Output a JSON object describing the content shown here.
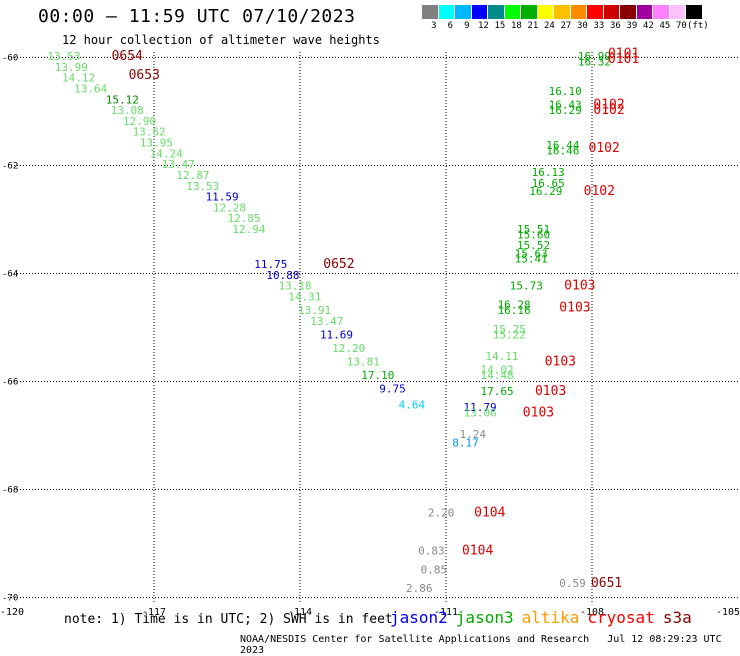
{
  "header": {
    "title": "00:00 – 11:59 UTC 07/10/2023",
    "subtitle": "12 hour collection of altimeter wave heights"
  },
  "colorbar": {
    "colors": [
      "#808080",
      "#00ffff",
      "#00b8ff",
      "#0000ff",
      "#008b8b",
      "#00ff00",
      "#00b000",
      "#ffff00",
      "#ffc000",
      "#ff8c00",
      "#ff0000",
      "#cc0000",
      "#8b0000",
      "#a000a0",
      "#ff80ff",
      "#ffc0ff",
      "#000000"
    ],
    "labels": [
      "3",
      "6",
      "9",
      "12",
      "15",
      "18",
      "21",
      "24",
      "27",
      "30",
      "33",
      "36",
      "39",
      "42",
      "45",
      "70",
      "(ft)"
    ]
  },
  "chart_data": {
    "type": "scatter",
    "title": "00:00 – 11:59 UTC 07/10/2023",
    "subtitle": "12 hour collection of altimeter wave heights",
    "x_ticks": [
      "-120",
      "-117",
      "-114",
      "-111",
      "-108",
      "-105"
    ],
    "y_ticks": [
      "-60",
      "-62",
      "-64",
      "-66",
      "-68",
      "-70"
    ],
    "xlim": [
      -120,
      -105
    ],
    "ylim": [
      -70.1,
      -59.9
    ],
    "grid": true,
    "swh_points": [
      {
        "lon": -118.85,
        "lat": -60.05,
        "text": "13.53",
        "color": "#66dd66"
      },
      {
        "lon": -118.7,
        "lat": -60.25,
        "text": "13.99",
        "color": "#66dd66"
      },
      {
        "lon": -118.55,
        "lat": -60.45,
        "text": "14.12",
        "color": "#66dd66"
      },
      {
        "lon": -118.3,
        "lat": -60.65,
        "text": "13.64",
        "color": "#66dd66"
      },
      {
        "lon": -117.65,
        "lat": -60.85,
        "text": "15.12",
        "color": "#008800"
      },
      {
        "lon": -117.55,
        "lat": -61.05,
        "text": "13.08",
        "color": "#66dd66"
      },
      {
        "lon": -117.3,
        "lat": -61.25,
        "text": "12.90",
        "color": "#66dd66"
      },
      {
        "lon": -117.1,
        "lat": -61.45,
        "text": "13.62",
        "color": "#66dd66"
      },
      {
        "lon": -116.95,
        "lat": -61.65,
        "text": "13.95",
        "color": "#66dd66"
      },
      {
        "lon": -116.75,
        "lat": -61.85,
        "text": "14.24",
        "color": "#66dd66"
      },
      {
        "lon": -116.5,
        "lat": -62.05,
        "text": "13.47",
        "color": "#66dd66"
      },
      {
        "lon": -116.2,
        "lat": -62.25,
        "text": "12.87",
        "color": "#66dd66"
      },
      {
        "lon": -116.0,
        "lat": -62.45,
        "text": "13.53",
        "color": "#66dd66"
      },
      {
        "lon": -115.6,
        "lat": -62.65,
        "text": "11.59",
        "color": "#0000cc"
      },
      {
        "lon": -115.45,
        "lat": -62.85,
        "text": "12.28",
        "color": "#66dd66"
      },
      {
        "lon": -115.15,
        "lat": -63.05,
        "text": "12.85",
        "color": "#66dd66"
      },
      {
        "lon": -115.05,
        "lat": -63.25,
        "text": "12.94",
        "color": "#66dd66"
      },
      {
        "lon": -114.6,
        "lat": -63.9,
        "text": "11.75",
        "color": "#0000cc"
      },
      {
        "lon": -114.35,
        "lat": -64.1,
        "text": "10.88",
        "color": "#0000cc"
      },
      {
        "lon": -114.1,
        "lat": -64.3,
        "text": "13.18",
        "color": "#66dd66"
      },
      {
        "lon": -113.9,
        "lat": -64.5,
        "text": "14.31",
        "color": "#66dd66"
      },
      {
        "lon": -113.7,
        "lat": -64.75,
        "text": "13.91",
        "color": "#66dd66"
      },
      {
        "lon": -113.45,
        "lat": -64.95,
        "text": "13.47",
        "color": "#66dd66"
      },
      {
        "lon": -113.25,
        "lat": -65.2,
        "text": "11.69",
        "color": "#0000cc"
      },
      {
        "lon": -113.0,
        "lat": -65.45,
        "text": "12.20",
        "color": "#66dd66"
      },
      {
        "lon": -112.7,
        "lat": -65.7,
        "text": "13.81",
        "color": "#66dd66"
      },
      {
        "lon": -112.4,
        "lat": -65.95,
        "text": "17.10",
        "color": "#00aa00"
      },
      {
        "lon": -112.1,
        "lat": -66.2,
        "text": "9.75",
        "color": "#0000cc"
      },
      {
        "lon": -111.7,
        "lat": -66.5,
        "text": "4.64",
        "color": "#00ccee"
      },
      {
        "lon": -107.95,
        "lat": -60.05,
        "text": "16.99",
        "color": "#00aa00"
      },
      {
        "lon": -107.95,
        "lat": -60.15,
        "text": "16.32",
        "color": "#00aa00"
      },
      {
        "lon": -108.55,
        "lat": -60.7,
        "text": "16.10",
        "color": "#00aa00"
      },
      {
        "lon": -108.55,
        "lat": -60.95,
        "text": "16.43",
        "color": "#00aa00"
      },
      {
        "lon": -108.55,
        "lat": -61.05,
        "text": "16.29",
        "color": "#00aa00"
      },
      {
        "lon": -108.6,
        "lat": -61.7,
        "text": "16.44",
        "color": "#00aa00"
      },
      {
        "lon": -108.6,
        "lat": -61.8,
        "text": "16.46",
        "color": "#00aa00"
      },
      {
        "lon": -108.9,
        "lat": -62.2,
        "text": "16.13",
        "color": "#00aa00"
      },
      {
        "lon": -108.9,
        "lat": -62.4,
        "text": "16.65",
        "color": "#00aa00"
      },
      {
        "lon": -108.95,
        "lat": -62.55,
        "text": "16.29",
        "color": "#00aa00"
      },
      {
        "lon": -109.2,
        "lat": -63.25,
        "text": "15.51",
        "color": "#00aa00"
      },
      {
        "lon": -109.2,
        "lat": -63.35,
        "text": "15.60",
        "color": "#00aa00"
      },
      {
        "lon": -109.2,
        "lat": -63.55,
        "text": "15.52",
        "color": "#00aa00"
      },
      {
        "lon": -109.25,
        "lat": -63.7,
        "text": "15.63",
        "color": "#00aa00"
      },
      {
        "lon": -109.25,
        "lat": -63.8,
        "text": "15.41",
        "color": "#00aa00"
      },
      {
        "lon": -109.35,
        "lat": -64.3,
        "text": "15.73",
        "color": "#00aa00"
      },
      {
        "lon": -109.6,
        "lat": -64.65,
        "text": "16.28",
        "color": "#00aa00"
      },
      {
        "lon": -109.6,
        "lat": -64.75,
        "text": "16.16",
        "color": "#00aa00"
      },
      {
        "lon": -109.7,
        "lat": -65.1,
        "text": "15.25",
        "color": "#66dd66"
      },
      {
        "lon": -109.7,
        "lat": -65.2,
        "text": "15.22",
        "color": "#66dd66"
      },
      {
        "lon": -109.85,
        "lat": -65.6,
        "text": "14.11",
        "color": "#66dd66"
      },
      {
        "lon": -109.95,
        "lat": -65.85,
        "text": "14.02",
        "color": "#66dd66"
      },
      {
        "lon": -109.95,
        "lat": -65.95,
        "text": "14.48",
        "color": "#66dd66"
      },
      {
        "lon": -109.95,
        "lat": -66.25,
        "text": "17.65",
        "color": "#00aa00"
      },
      {
        "lon": -110.3,
        "lat": -66.55,
        "text": "11.79",
        "color": "#0000cc"
      },
      {
        "lon": -110.3,
        "lat": -66.65,
        "text": "13.06",
        "color": "#66dd66"
      },
      {
        "lon": -110.45,
        "lat": -67.05,
        "text": "1.24",
        "color": "#888888"
      },
      {
        "lon": -110.6,
        "lat": -67.2,
        "text": "8.17",
        "color": "#0099ee"
      },
      {
        "lon": -111.1,
        "lat": -68.5,
        "text": "2.20",
        "color": "#888888"
      },
      {
        "lon": -111.3,
        "lat": -69.2,
        "text": "0.83",
        "color": "#888888"
      },
      {
        "lon": -111.25,
        "lat": -69.55,
        "text": "0.85",
        "color": "#888888"
      },
      {
        "lon": -111.55,
        "lat": -69.9,
        "text": "2.86",
        "color": "#888888"
      },
      {
        "lon": -108.4,
        "lat": -69.8,
        "text": "0.59",
        "color": "#888888"
      }
    ],
    "time_labels": [
      {
        "lon": -117.55,
        "lat": -60.05,
        "text": "0654",
        "color": "#8b0000"
      },
      {
        "lon": -117.2,
        "lat": -60.4,
        "text": "0653",
        "color": "#8b0000"
      },
      {
        "lon": -113.2,
        "lat": -63.9,
        "text": "0652",
        "color": "#8b0000"
      },
      {
        "lon": -107.35,
        "lat": -60.0,
        "text": "0101",
        "color": "#dd0000"
      },
      {
        "lon": -107.35,
        "lat": -60.1,
        "text": "0101",
        "color": "#dd0000"
      },
      {
        "lon": -107.65,
        "lat": -60.95,
        "text": "0102",
        "color": "#dd0000"
      },
      {
        "lon": -107.65,
        "lat": -61.05,
        "text": "0102",
        "color": "#dd0000"
      },
      {
        "lon": -107.75,
        "lat": -61.75,
        "text": "0102",
        "color": "#dd0000"
      },
      {
        "lon": -107.85,
        "lat": -62.55,
        "text": "0102",
        "color": "#dd0000"
      },
      {
        "lon": -108.25,
        "lat": -64.3,
        "text": "0103",
        "color": "#dd0000"
      },
      {
        "lon": -108.35,
        "lat": -64.7,
        "text": "0103",
        "color": "#dd0000"
      },
      {
        "lon": -108.65,
        "lat": -65.7,
        "text": "0103",
        "color": "#dd0000"
      },
      {
        "lon": -108.85,
        "lat": -66.25,
        "text": "0103",
        "color": "#dd0000"
      },
      {
        "lon": -109.1,
        "lat": -66.65,
        "text": "0103",
        "color": "#dd0000"
      },
      {
        "lon": -110.1,
        "lat": -68.5,
        "text": "0104",
        "color": "#dd0000"
      },
      {
        "lon": -110.35,
        "lat": -69.2,
        "text": "0104",
        "color": "#dd0000"
      },
      {
        "lon": -107.7,
        "lat": -69.8,
        "text": "0651",
        "color": "#8b0000"
      }
    ]
  },
  "footer": {
    "note": "note: 1) Time is in UTC; 2) SWH is in feet",
    "satellites": [
      {
        "name": "jason2",
        "color": "#0000ff"
      },
      {
        "name": "jason3",
        "color": "#00aa00"
      },
      {
        "name": "altika",
        "color": "#ff9900"
      },
      {
        "name": "cryosat",
        "color": "#ff0000"
      },
      {
        "name": "s3a",
        "color": "#8b0000"
      }
    ],
    "credit": "NOAA/NESDIS Center for Satellite Applications and Research",
    "timestamp": "Jul 12 08:29:23 UTC 2023"
  }
}
